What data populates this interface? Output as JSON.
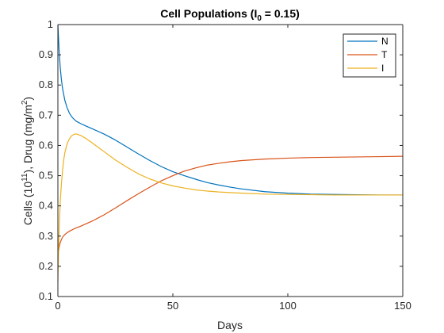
{
  "chart_data": {
    "type": "line",
    "title": {
      "prefix": "Cell Populations (I",
      "subscript": "0",
      "suffix": " = 0.15)"
    },
    "xlabel": "Days",
    "ylabel": {
      "part1": "Cells (10",
      "sup1": "11",
      "part2": "), Drug (mg/m",
      "sup2": "2",
      "part3": ")"
    },
    "xlim": [
      0,
      150
    ],
    "ylim": [
      0.1,
      1.0
    ],
    "xticks": [
      0,
      50,
      100,
      150
    ],
    "yticks": [
      0.1,
      0.2,
      0.3,
      0.4,
      0.5,
      0.6,
      0.7,
      0.8,
      0.9,
      1.0
    ],
    "xtick_labels": [
      "0",
      "50",
      "100",
      "150"
    ],
    "ytick_labels": [
      "0.1",
      "0.2",
      "0.3",
      "0.4",
      "0.5",
      "0.6",
      "0.7",
      "0.8",
      "0.9",
      "1"
    ],
    "grid": false,
    "legend_position": "top-right",
    "series": [
      {
        "name": "N",
        "color": "#0072BD",
        "x": [
          0,
          0.5,
          1,
          1.5,
          2,
          3,
          4,
          5,
          6,
          7,
          8,
          10,
          12,
          15,
          20,
          25,
          30,
          35,
          40,
          45,
          50,
          55,
          60,
          65,
          70,
          75,
          80,
          90,
          100,
          110,
          120,
          130,
          140,
          150
        ],
        "y": [
          1.0,
          0.92,
          0.86,
          0.82,
          0.79,
          0.75,
          0.725,
          0.707,
          0.695,
          0.687,
          0.68,
          0.672,
          0.665,
          0.655,
          0.638,
          0.618,
          0.595,
          0.572,
          0.55,
          0.53,
          0.513,
          0.5,
          0.488,
          0.477,
          0.469,
          0.462,
          0.456,
          0.447,
          0.442,
          0.439,
          0.438,
          0.437,
          0.436,
          0.436
        ]
      },
      {
        "name": "T",
        "color": "#D95319",
        "x": [
          0,
          0.3,
          0.6,
          1,
          1.5,
          2,
          3,
          4,
          5,
          6,
          7,
          8,
          10,
          12,
          15,
          20,
          25,
          30,
          35,
          40,
          45,
          50,
          55,
          60,
          65,
          70,
          75,
          80,
          90,
          100,
          110,
          120,
          130,
          140,
          150
        ],
        "y": [
          0.24,
          0.25,
          0.265,
          0.278,
          0.288,
          0.296,
          0.305,
          0.311,
          0.316,
          0.32,
          0.324,
          0.327,
          0.333,
          0.34,
          0.35,
          0.37,
          0.393,
          0.417,
          0.44,
          0.462,
          0.483,
          0.5,
          0.515,
          0.526,
          0.535,
          0.541,
          0.546,
          0.55,
          0.555,
          0.558,
          0.56,
          0.561,
          0.562,
          0.563,
          0.564
        ]
      },
      {
        "name": "I",
        "color": "#EDB120",
        "x": [
          0,
          0.3,
          0.6,
          1,
          1.5,
          2,
          2.5,
          3,
          4,
          5,
          6,
          7,
          8,
          10,
          12,
          15,
          20,
          25,
          30,
          35,
          40,
          45,
          50,
          55,
          60,
          65,
          70,
          80,
          90,
          100,
          110,
          120,
          130,
          140,
          150
        ],
        "y": [
          0.15,
          0.25,
          0.33,
          0.41,
          0.47,
          0.515,
          0.55,
          0.575,
          0.605,
          0.622,
          0.632,
          0.637,
          0.638,
          0.633,
          0.624,
          0.608,
          0.58,
          0.552,
          0.528,
          0.506,
          0.489,
          0.476,
          0.466,
          0.459,
          0.453,
          0.449,
          0.446,
          0.442,
          0.439,
          0.438,
          0.437,
          0.436,
          0.436,
          0.436,
          0.436
        ]
      }
    ]
  }
}
